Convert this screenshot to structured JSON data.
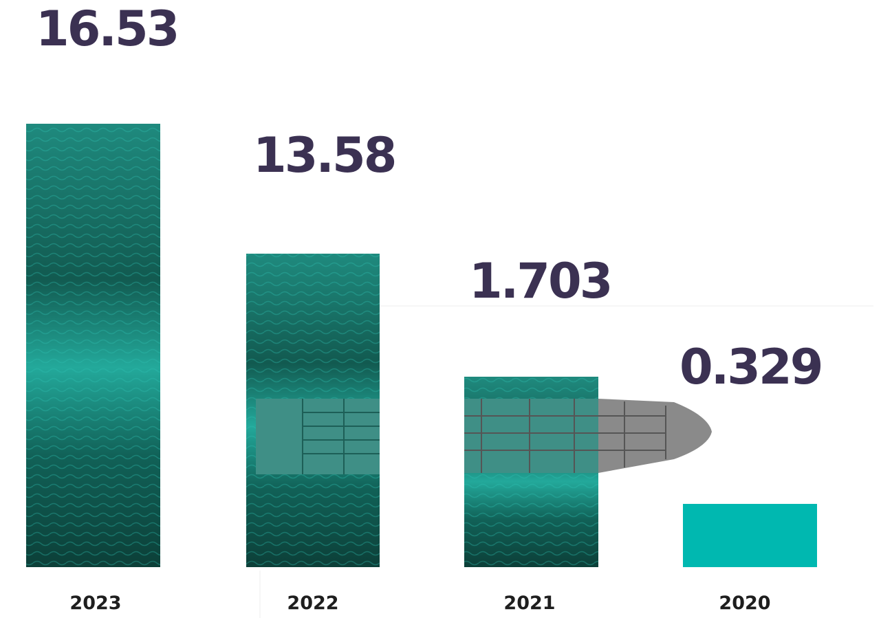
{
  "items": [
    {
      "year": "2023",
      "value": 16.53
    },
    {
      "year": "2022",
      "value": 13.58
    },
    {
      "year": "2021",
      "value": 1.703
    },
    {
      "year": "2020",
      "value": 0.329
    }
  ]
}
